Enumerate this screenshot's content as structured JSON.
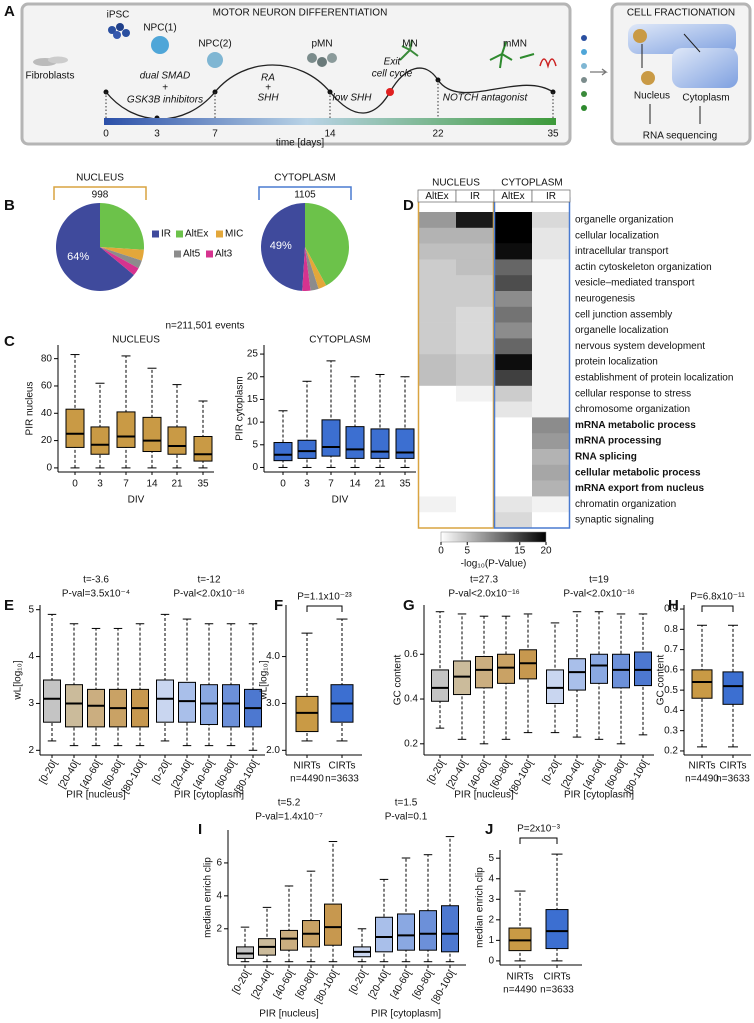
{
  "panel_letters": [
    "A",
    "B",
    "C",
    "D",
    "E",
    "F",
    "G",
    "H",
    "I",
    "J"
  ],
  "panel_a": {
    "title": "MOTOR NEURON DIFFERENTIATION",
    "stages": [
      "Fibroblasts",
      "iPSC",
      "NPC(1)",
      "NPC(2)",
      "pMN",
      "MN",
      "mMN"
    ],
    "treatments": [
      "dual SMAD",
      "+",
      "GSK3B inhibitors",
      "RA",
      "+",
      "SHH",
      "low SHH",
      "Exit",
      "cell cycle",
      "NOTCH antagonist"
    ],
    "time_ticks": [
      0,
      3,
      7,
      14,
      22,
      35
    ],
    "time_label": "time [days]"
  },
  "panel_fractionation": {
    "title": "CELL FRACTIONATION",
    "labels": [
      "Nucleus",
      "Cytoplasm",
      "RNA sequencing"
    ]
  },
  "note_c": "n=211,501 events",
  "pie_legend": {
    "categories": [
      "IR",
      "AltEx",
      "MIC",
      "Alt5",
      "Alt3"
    ],
    "colors": [
      "#3f4a9c",
      "#6cc24a",
      "#e3a73a",
      "#8c8c8c",
      "#d6338f"
    ]
  },
  "chart_data": [
    {
      "type": "pie",
      "title": "NUCLEUS",
      "total": 998,
      "color": "#d9a441",
      "values": [
        64,
        26,
        4,
        3,
        3
      ],
      "value_labels": [
        "64%",
        null,
        null,
        null,
        null
      ]
    },
    {
      "type": "pie",
      "title": "CYTOPLASM",
      "total": 1105,
      "color": "#4a7bd0",
      "values": [
        49,
        42,
        3,
        3,
        3
      ],
      "value_labels": [
        "49%",
        null,
        null,
        null,
        null
      ]
    },
    {
      "type": "box",
      "title": "NUCLEUS",
      "xlabel": "DIV",
      "ylabel": "PIR nucleus",
      "categories": [
        "0",
        "3",
        "7",
        "14",
        "21",
        "35"
      ],
      "ylim": [
        -3,
        90
      ],
      "yticks": [
        0,
        20,
        40,
        60,
        80
      ],
      "series": [
        {
          "color": "#c99a45",
          "boxes": [
            [
              0,
              15,
              25,
              43,
              83
            ],
            [
              0,
              10,
              17,
              30,
              62
            ],
            [
              0,
              15,
              23,
              41,
              82
            ],
            [
              0,
              12,
              20,
              37,
              73
            ],
            [
              0,
              10,
              16,
              30,
              61
            ],
            [
              0,
              5,
              10,
              23,
              49
            ]
          ]
        }
      ]
    },
    {
      "type": "box",
      "title": "CYTOPLASM",
      "xlabel": "DIV",
      "ylabel": "PIR cytoplasm",
      "categories": [
        "0",
        "3",
        "7",
        "14",
        "21",
        "35"
      ],
      "ylim": [
        -1,
        27
      ],
      "yticks": [
        0,
        5,
        10,
        15,
        20,
        25
      ],
      "series": [
        {
          "color": "#3c6fd1",
          "boxes": [
            [
              0,
              1.5,
              2.8,
              5.5,
              12.5
            ],
            [
              0,
              2,
              3.6,
              6,
              19
            ],
            [
              0,
              2.5,
              4.5,
              10.5,
              23.5
            ],
            [
              0,
              2,
              4,
              9,
              20
            ],
            [
              0,
              2,
              3.5,
              8.5,
              20.5
            ],
            [
              0,
              2,
              3.3,
              8.5,
              20
            ]
          ]
        }
      ]
    },
    {
      "type": "heatmap",
      "groups": [
        "NUCLEUS",
        "CYTOPLASM"
      ],
      "group_colors": [
        "#d9a441",
        "#4a7bd0"
      ],
      "columns": [
        "AltEx",
        "IR",
        "AltEx",
        "IR"
      ],
      "clim": [
        0,
        20
      ],
      "cticks": [
        0,
        5,
        15,
        20
      ],
      "colorbar_label": "-log₁₀(P-Value)",
      "rows": [
        {
          "label": "organelle organization",
          "values": [
            8,
            18,
            20,
            3
          ]
        },
        {
          "label": "cellular localization",
          "values": [
            6,
            6,
            20,
            2
          ]
        },
        {
          "label": "intracellular transport",
          "values": [
            5,
            5,
            19,
            2
          ]
        },
        {
          "label": "actin cytoskeleton organization",
          "values": [
            4,
            5,
            12,
            1
          ]
        },
        {
          "label": "vesicle–mediated transport",
          "values": [
            4,
            4,
            14,
            1
          ]
        },
        {
          "label": "neurogenesis",
          "values": [
            4,
            4,
            9,
            1
          ]
        },
        {
          "label": "cell junction assembly",
          "values": [
            4,
            3,
            11,
            1
          ]
        },
        {
          "label": "organelle localization",
          "values": [
            4,
            3,
            9,
            1
          ]
        },
        {
          "label": "nervous system development",
          "values": [
            4,
            3,
            12,
            1
          ]
        },
        {
          "label": "protein localization",
          "values": [
            5,
            4,
            19,
            1
          ]
        },
        {
          "label": "establishment of protein localization",
          "values": [
            5,
            4,
            15,
            1
          ]
        },
        {
          "label": "cellular response to stress",
          "values": [
            0,
            1,
            4,
            1
          ]
        },
        {
          "label": "chromosome organization",
          "values": [
            0,
            0,
            2,
            1
          ]
        },
        {
          "label": "mRNA metabolic process",
          "values": [
            0,
            0,
            0,
            9
          ],
          "bold": true
        },
        {
          "label": "mRNA processing",
          "values": [
            0,
            0,
            0,
            8
          ],
          "bold": true
        },
        {
          "label": "RNA splicing",
          "values": [
            0,
            0,
            0,
            6
          ],
          "bold": true
        },
        {
          "label": "cellular metabolic process",
          "values": [
            0,
            0,
            0,
            7
          ],
          "bold": true
        },
        {
          "label": "mRNA export from nucleus",
          "values": [
            0,
            0,
            0,
            6
          ],
          "bold": true
        },
        {
          "label": "chromatin organization",
          "values": [
            1,
            0,
            2,
            1
          ]
        },
        {
          "label": "synaptic signaling",
          "values": [
            0,
            0,
            3,
            0
          ]
        }
      ]
    },
    {
      "type": "box",
      "ylabel": "wL[log₁₀]",
      "categories": [
        "[0-20[",
        "[20-40[",
        "[40-60[",
        "[60-80[",
        "[80-100["
      ],
      "ylim": [
        1.9,
        5.1
      ],
      "yticks": [
        2,
        3,
        4,
        5
      ],
      "series": [
        {
          "name": "PIR [nucleus]",
          "annotations": [
            "t=-3.6",
            "P-val=3.5x10⁻⁴"
          ],
          "colors": [
            "#c4c4c4",
            "#cbbb9b",
            "#cbae80",
            "#c9a265",
            "#c7984f"
          ],
          "boxes": [
            [
              2.2,
              2.6,
              3.1,
              3.5,
              4.9
            ],
            [
              2.1,
              2.5,
              3.0,
              3.4,
              4.7
            ],
            [
              2.1,
              2.5,
              2.95,
              3.3,
              4.6
            ],
            [
              2.1,
              2.5,
              2.9,
              3.3,
              4.6
            ],
            [
              2.1,
              2.5,
              2.9,
              3.3,
              4.7
            ]
          ]
        },
        {
          "name": "PIR [cytoplasm]",
          "annotations": [
            "t=-12",
            "P-val<2.0x10⁻¹⁶"
          ],
          "colors": [
            "#c9d6f0",
            "#a9bfea",
            "#8aa8e2",
            "#6c90d9",
            "#4d78d0"
          ],
          "boxes": [
            [
              2.2,
              2.6,
              3.1,
              3.5,
              4.9
            ],
            [
              2.1,
              2.6,
              3.05,
              3.45,
              4.8
            ],
            [
              2.1,
              2.55,
              3.0,
              3.4,
              4.7
            ],
            [
              2.1,
              2.5,
              3.0,
              3.4,
              4.7
            ],
            [
              2.0,
              2.5,
              2.9,
              3.3,
              4.7
            ]
          ]
        }
      ]
    },
    {
      "type": "box",
      "ylabel": "wL[log₁₀]",
      "annotation": "P=1.1x10⁻²³",
      "categories": [
        "NIRTs",
        "CIRTs"
      ],
      "sublabels": [
        "n=4490",
        "n=3633"
      ],
      "ylim": [
        1.9,
        5.1
      ],
      "yticks": [
        {
          "value": 2,
          "label": "2.0"
        },
        {
          "value": 3,
          "label": "3.0"
        },
        {
          "value": 4,
          "label": "4.0"
        }
      ],
      "series": [
        {
          "colors": [
            "#c99a45",
            "#3c6fd1"
          ],
          "boxes": [
            [
              2.2,
              2.4,
              2.8,
              3.15,
              4.5
            ],
            [
              2.2,
              2.6,
              3.0,
              3.4,
              4.8
            ]
          ]
        }
      ]
    },
    {
      "type": "box",
      "ylabel": "GC content",
      "categories": [
        "[0-20[",
        "[20-40[",
        "[40-60[",
        "[60-80[",
        "[80-100["
      ],
      "ylim": [
        0.15,
        0.82
      ],
      "yticks": [
        0.2,
        0.4,
        0.6
      ],
      "series": [
        {
          "name": "PIR [nucleus]",
          "annotations": [
            "t=27.3",
            "P-val<2.0x10⁻¹⁶"
          ],
          "colors": [
            "#c4c4c4",
            "#cbbb9b",
            "#cbae80",
            "#c9a265",
            "#c7984f"
          ],
          "boxes": [
            [
              0.27,
              0.39,
              0.45,
              0.53,
              0.79
            ],
            [
              0.22,
              0.42,
              0.5,
              0.57,
              0.78
            ],
            [
              0.2,
              0.45,
              0.53,
              0.59,
              0.77
            ],
            [
              0.22,
              0.47,
              0.54,
              0.6,
              0.77
            ],
            [
              0.25,
              0.49,
              0.56,
              0.62,
              0.78
            ]
          ]
        },
        {
          "name": "PIR [cytoplasm]",
          "annotations": [
            "t=19",
            "P-val<2.0x10⁻¹⁶"
          ],
          "colors": [
            "#c9d6f0",
            "#a9bfea",
            "#8aa8e2",
            "#6c90d9",
            "#4d78d0"
          ],
          "boxes": [
            [
              0.25,
              0.38,
              0.45,
              0.53,
              0.74
            ],
            [
              0.23,
              0.44,
              0.52,
              0.58,
              0.79
            ],
            [
              0.22,
              0.47,
              0.55,
              0.6,
              0.79
            ],
            [
              0.2,
              0.45,
              0.53,
              0.6,
              0.78
            ],
            [
              0.24,
              0.46,
              0.53,
              0.61,
              0.78
            ]
          ]
        }
      ]
    },
    {
      "type": "box",
      "ylabel": "GC content",
      "annotation": "P=6.8x10⁻¹¹",
      "categories": [
        "NIRTs",
        "CIRTs"
      ],
      "sublabels": [
        "n=4490",
        "n=3633"
      ],
      "ylim": [
        0.18,
        0.92
      ],
      "yticks": [
        0.2,
        0.3,
        0.4,
        0.5,
        0.6,
        0.7,
        0.8,
        0.9
      ],
      "series": [
        {
          "colors": [
            "#c99a45",
            "#3c6fd1"
          ],
          "boxes": [
            [
              0.22,
              0.46,
              0.54,
              0.6,
              0.82
            ],
            [
              0.22,
              0.43,
              0.52,
              0.59,
              0.82
            ]
          ]
        }
      ]
    },
    {
      "type": "box",
      "ylabel": "median enrich clip",
      "categories": [
        "[0-20[",
        "[20-40[",
        "[40-60[",
        "[60-80[",
        "[80-100["
      ],
      "ylim": [
        -0.2,
        8
      ],
      "yticks": [
        2,
        4,
        6
      ],
      "series": [
        {
          "name": "PIR [nucleus]",
          "annotations": [
            "t=5.2",
            "P-val=1.4x10⁻⁷"
          ],
          "colors": [
            "#c4c4c4",
            "#cbbb9b",
            "#cbae80",
            "#c9a265",
            "#c7984f"
          ],
          "boxes": [
            [
              0,
              0.2,
              0.5,
              0.9,
              2.1
            ],
            [
              0,
              0.4,
              0.9,
              1.4,
              3.3
            ],
            [
              0,
              0.7,
              1.4,
              1.9,
              4.6
            ],
            [
              0,
              0.9,
              1.7,
              2.5,
              5.5
            ],
            [
              0,
              1.0,
              2.1,
              3.5,
              7.3
            ]
          ]
        },
        {
          "name": "PIR [cytoplasm]",
          "annotations": [
            "t=1.5",
            "P-val=0.1"
          ],
          "colors": [
            "#c9d6f0",
            "#a9bfea",
            "#8aa8e2",
            "#6c90d9",
            "#4d78d0"
          ],
          "boxes": [
            [
              0,
              0.3,
              0.6,
              0.9,
              2.0
            ],
            [
              0,
              0.6,
              1.5,
              2.7,
              5.0
            ],
            [
              0,
              0.7,
              1.6,
              2.9,
              6.3
            ],
            [
              0,
              0.7,
              1.7,
              3.1,
              6.5
            ],
            [
              0,
              0.6,
              1.7,
              3.4,
              7.6
            ]
          ]
        }
      ]
    },
    {
      "type": "box",
      "ylabel": "median enrich clip",
      "annotation": "P=2x10⁻³",
      "categories": [
        "NIRTs",
        "CIRTs"
      ],
      "sublabels": [
        "n=4490",
        "n=3633"
      ],
      "ylim": [
        -0.2,
        5.4
      ],
      "yticks": [
        0,
        1,
        2,
        3,
        4,
        5
      ],
      "series": [
        {
          "colors": [
            "#c99a45",
            "#3c6fd1"
          ],
          "boxes": [
            [
              0,
              0.5,
              1.0,
              1.6,
              3.4
            ],
            [
              0,
              0.6,
              1.45,
              2.5,
              5.2
            ]
          ]
        }
      ]
    }
  ]
}
